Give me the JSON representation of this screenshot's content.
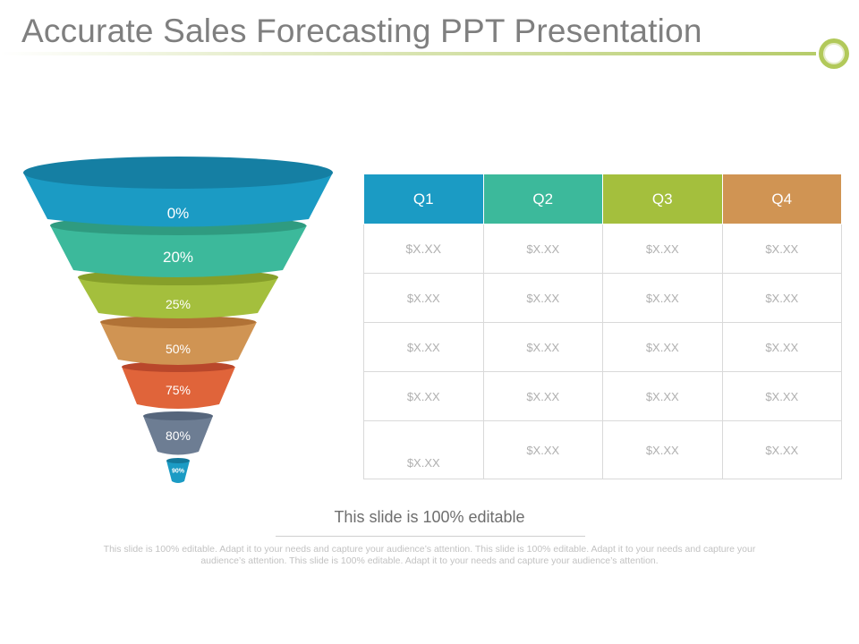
{
  "title": "Accurate Sales Forecasting PPT Presentation",
  "colors": {
    "blue": "#1b9bc4",
    "teal": "#3cb99b",
    "green": "#a4bf3d",
    "orange": "#d09453",
    "red": "#e0643a",
    "slate": "#6d7d93",
    "accent_line": "#c5d68e"
  },
  "funnel": {
    "labels": [
      "0%",
      "20%",
      "25%",
      "50%",
      "75%",
      "80%",
      "90%"
    ]
  },
  "table": {
    "headers": [
      "Q1",
      "Q2",
      "Q3",
      "Q4"
    ],
    "rows": [
      [
        "$X.XX",
        "$X.XX",
        "$X.XX",
        "$X.XX"
      ],
      [
        "$X.XX",
        "$X.XX",
        "$X.XX",
        "$X.XX"
      ],
      [
        "$X.XX",
        "$X.XX",
        "$X.XX",
        "$X.XX"
      ],
      [
        "$X.XX",
        "$X.XX",
        "$X.XX",
        "$X.XX"
      ],
      [
        "$X.XX",
        "$X.XX",
        "$X.XX",
        "$X.XX"
      ]
    ]
  },
  "note": {
    "heading": "This slide is 100% editable",
    "body": "This slide is 100% editable. Adapt it to your needs and capture your audience’s attention. This slide is 100% editable. Adapt it to your needs and capture your audience’s attention. This slide is 100% editable. Adapt it to your needs and capture your audience’s attention."
  }
}
